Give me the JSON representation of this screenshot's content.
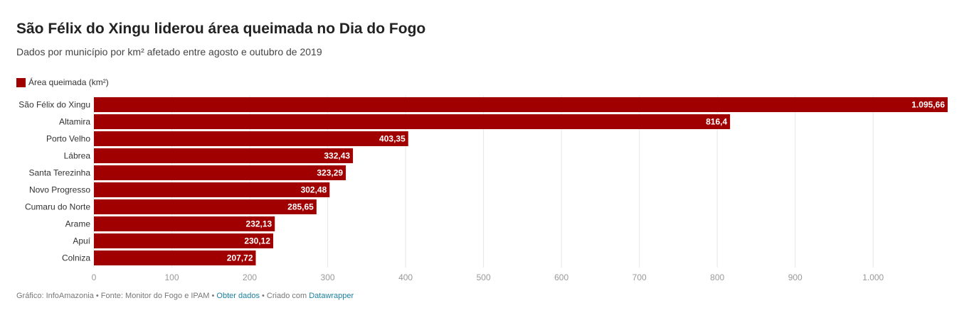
{
  "title": "São Félix do Xingu liderou área queimada no Dia do Fogo",
  "subtitle": "Dados por município por km² afetado entre agosto e outubro de 2019",
  "legend_label": "Área queimada (km²)",
  "colors": {
    "bar": "#a00000",
    "grid": "#e6e6e6",
    "tick": "#999999",
    "label": "#333333",
    "value": "#ffffff",
    "link": "#1d81a2"
  },
  "footer": {
    "prefix": "Gráfico: InfoAmazonia • Fonte: Monitor do Fogo e IPAM • ",
    "data_link": "Obter dados",
    "middle": " • Criado com ",
    "tool_link": "Datawrapper"
  },
  "chart_data": {
    "type": "bar",
    "orientation": "horizontal",
    "categories": [
      "São Félix do Xingu",
      "Altamira",
      "Porto Velho",
      "Lábrea",
      "Santa Terezinha",
      "Novo Progresso",
      "Cumaru do Norte",
      "Arame",
      "Apuí",
      "Colniza"
    ],
    "series": [
      {
        "name": "Área queimada (km²)",
        "values": [
          1095.66,
          816.4,
          403.35,
          332.43,
          323.29,
          302.48,
          285.65,
          232.13,
          230.12,
          207.72
        ],
        "value_labels": [
          "1.095,66",
          "816,4",
          "403,35",
          "332,43",
          "323,29",
          "302,48",
          "285,65",
          "232,13",
          "230,12",
          "207,72"
        ]
      }
    ],
    "xlim": [
      0,
      1095.66
    ],
    "x_ticks": [
      0,
      100,
      200,
      300,
      400,
      500,
      600,
      700,
      800,
      900,
      1000
    ],
    "x_tick_labels": [
      "0",
      "100",
      "200",
      "300",
      "400",
      "500",
      "600",
      "700",
      "800",
      "900",
      "1.000"
    ],
    "grid": true,
    "legend_position": "top-left"
  }
}
